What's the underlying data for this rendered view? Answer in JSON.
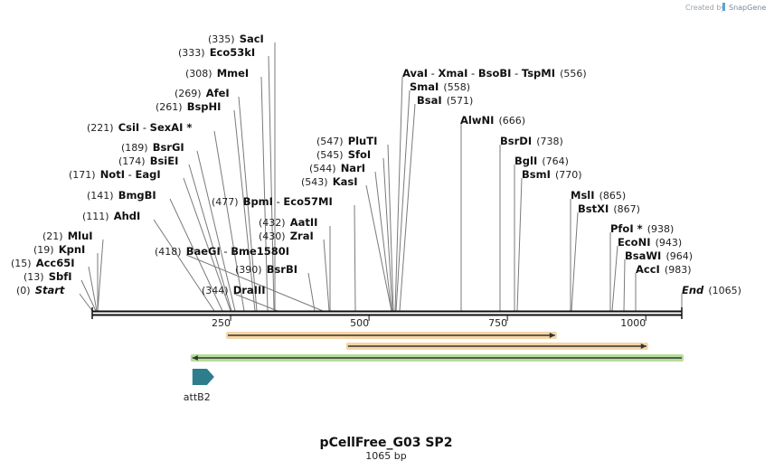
{
  "credit": {
    "text": "Created by",
    "brand": "SnapGene"
  },
  "map": {
    "title": "pCellFree_G03 SP2",
    "subtitle": "1065 bp",
    "total_bp": 1065,
    "axis_ticks": [
      250,
      500,
      750,
      1000
    ]
  },
  "labels": [
    {
      "row": 0,
      "pos": "(335)",
      "names": [
        "SacI"
      ]
    },
    {
      "row": 1,
      "pos": "(333)",
      "names": [
        "Eco53kI"
      ]
    },
    {
      "row": 2,
      "pos": "(308)",
      "names": [
        "MmeI"
      ]
    },
    {
      "row": 3,
      "pos": "(269)",
      "names": [
        "AfeI"
      ]
    },
    {
      "row": 4,
      "pos": "(261)",
      "names": [
        "BspHI"
      ]
    },
    {
      "row": 5,
      "pos": "(221)",
      "names": [
        "CsiI",
        "SexAI *"
      ]
    },
    {
      "row": 6,
      "pos": "(189)",
      "names": [
        "BsrGI"
      ]
    },
    {
      "row": 7,
      "pos": "(174)",
      "names": [
        "BsiEI"
      ]
    },
    {
      "row": 8,
      "pos": "(171)",
      "names": [
        "NotI",
        "EagI"
      ]
    },
    {
      "row": 9,
      "pos": "(141)",
      "names": [
        "BmgBI"
      ]
    },
    {
      "row": 10,
      "pos": "(477)",
      "names": [
        "BpmI",
        "Eco57MI"
      ]
    },
    {
      "row": 11,
      "pos": "(111)",
      "names": [
        "AhdI"
      ]
    },
    {
      "row": 12,
      "pos": "(432)",
      "names": [
        "AatII"
      ]
    },
    {
      "row": 13,
      "pos": "(21)",
      "names": [
        "MluI"
      ]
    },
    {
      "row": 14,
      "pos": "(430)",
      "names": [
        "ZraI"
      ]
    },
    {
      "row": 15,
      "pos": "(19)",
      "names": [
        "KpnI"
      ]
    },
    {
      "row": 16,
      "pos": "(418)",
      "names": [
        "BaeGI",
        "Bme1580I"
      ]
    },
    {
      "row": 17,
      "pos": "(15)",
      "names": [
        "Acc65I"
      ]
    },
    {
      "row": 18,
      "pos": "(390)",
      "names": [
        "BsrBI"
      ]
    },
    {
      "row": 19,
      "pos": "(13)",
      "names": [
        "SbfI"
      ]
    },
    {
      "row": 20,
      "pos": "(0)",
      "names": [
        "Start"
      ],
      "italic": true
    },
    {
      "row": 21,
      "pos": "(344)",
      "names": [
        "DraIII"
      ]
    },
    {
      "row": 22,
      "pos": "(547)",
      "names": [
        "PluTI"
      ]
    },
    {
      "row": 23,
      "pos": "(545)",
      "names": [
        "SfoI"
      ]
    },
    {
      "row": 24,
      "pos": "(544)",
      "names": [
        "NarI"
      ]
    },
    {
      "row": 25,
      "pos": "(543)",
      "names": [
        "KasI"
      ]
    },
    {
      "row": 26,
      "pos": "(556)",
      "names": [
        "AvaI",
        "XmaI",
        "BsoBI",
        "TspMI"
      ]
    },
    {
      "row": 27,
      "pos": "(558)",
      "names": [
        "SmaI"
      ]
    },
    {
      "row": 28,
      "pos": "(571)",
      "names": [
        "BsaI"
      ]
    },
    {
      "row": 29,
      "pos": "(666)",
      "names": [
        "AlwNI"
      ]
    },
    {
      "row": 30,
      "pos": "(738)",
      "names": [
        "BsrDI"
      ]
    },
    {
      "row": 31,
      "pos": "(764)",
      "names": [
        "BglI"
      ]
    },
    {
      "row": 32,
      "pos": "(770)",
      "names": [
        "BsmI"
      ]
    },
    {
      "row": 33,
      "pos": "(865)",
      "names": [
        "MslI"
      ]
    },
    {
      "row": 34,
      "pos": "(867)",
      "names": [
        "BstXI"
      ]
    },
    {
      "row": 35,
      "pos": "(938)",
      "names": [
        "PfoI *"
      ]
    },
    {
      "row": 36,
      "pos": "(943)",
      "names": [
        "EcoNI"
      ]
    },
    {
      "row": 37,
      "pos": "(964)",
      "names": [
        "BsaWI"
      ]
    },
    {
      "row": 38,
      "pos": "(983)",
      "names": [
        "AccI"
      ]
    },
    {
      "row": 39,
      "pos": "(1065)",
      "names": [
        "End"
      ],
      "italic": true
    }
  ],
  "features": [
    {
      "name": "orange-feature-1",
      "start": 245,
      "end": 836,
      "direction": "forward",
      "color": "#e8a33a"
    },
    {
      "name": "orange-feature-2",
      "start": 462,
      "end": 1001,
      "direction": "forward",
      "color": "#e8a33a"
    },
    {
      "name": "green-feature",
      "start": 181,
      "end": 1065,
      "direction": "reverse",
      "color": "#5db51e"
    },
    {
      "name": "attB2",
      "label": "attB2",
      "start": 181,
      "end": 204,
      "direction": "forward",
      "color": "#2e7d8c"
    }
  ]
}
